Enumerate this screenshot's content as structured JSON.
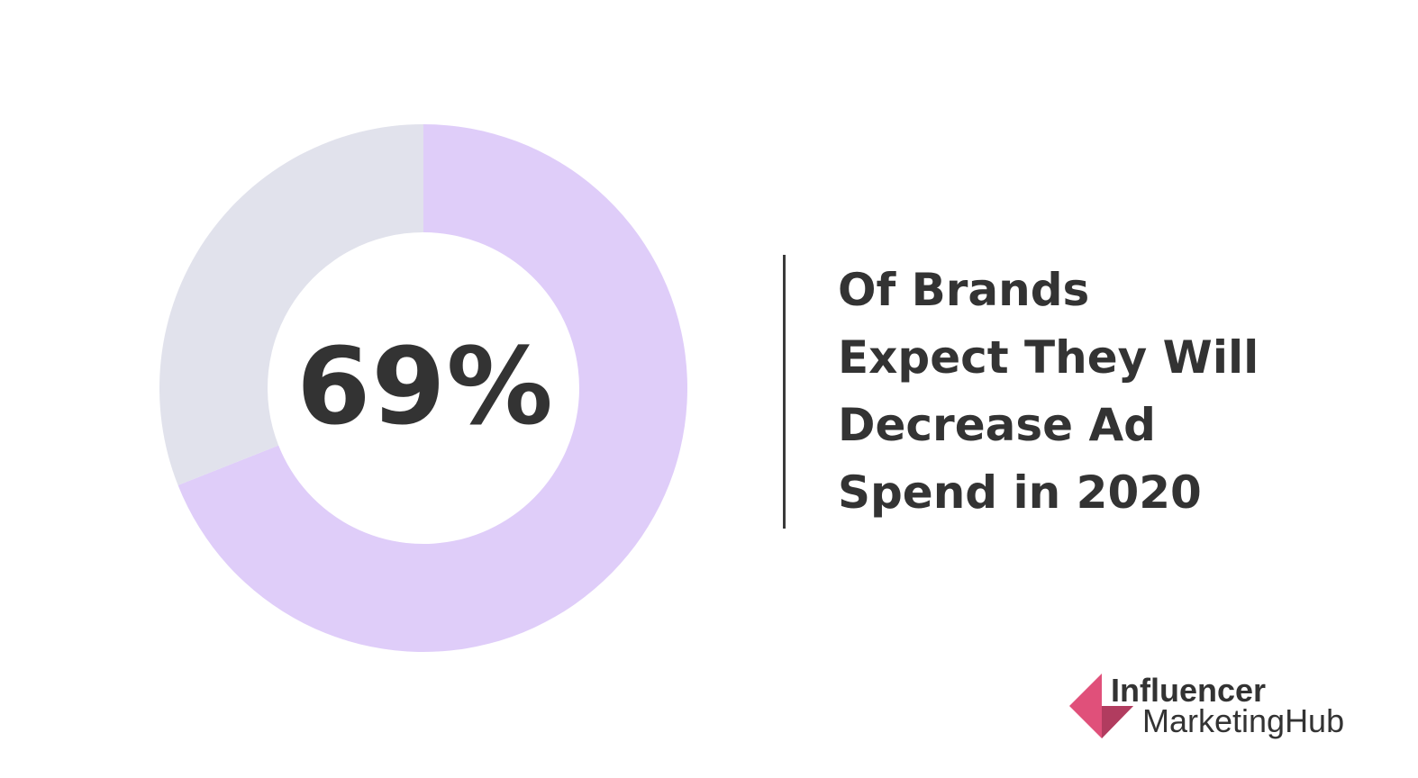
{
  "chart_data": {
    "type": "pie",
    "style": "donut",
    "slices": [
      {
        "value": 69,
        "color": "#dfcdf9"
      },
      {
        "value": 31,
        "color": "#e1e2ec"
      }
    ],
    "center_label": "69%",
    "caption_lines": [
      "Of Brands",
      "Expect They Will",
      "Decrease Ad",
      "Spend in 2020"
    ]
  },
  "brand": {
    "line1": "Influencer",
    "line2": "MarketingHub",
    "colors": {
      "primary": "#e0507a",
      "secondary": "#b13c5f"
    }
  },
  "colors": {
    "text": "#333333",
    "divider": "#3a3a3a",
    "background": "#ffffff"
  }
}
